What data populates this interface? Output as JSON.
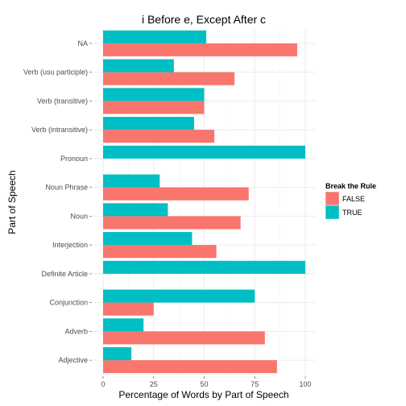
{
  "chart_data": {
    "type": "bar",
    "orientation": "horizontal",
    "title": "i Before e, Except After c",
    "xlabel": "Percentage of Words by Part of Speech",
    "ylabel": "Part of Speech",
    "xlim": [
      0,
      100
    ],
    "x_ticks": [
      0,
      25,
      50,
      75,
      100
    ],
    "grid": true,
    "legend": {
      "title": "Break the Rule",
      "position": "right"
    },
    "categories": [
      "NA",
      "Verb (usu participle)",
      "Verb (transitive)",
      "Verb (intransitive)",
      "Pronoun",
      "Noun Phrase",
      "Noun",
      "Interjection",
      "Definite Article",
      "Conjunction",
      "Adverb",
      "Adjective"
    ],
    "series": [
      {
        "name": "FALSE",
        "color": "#F8766D",
        "values": [
          96,
          65,
          50,
          55,
          null,
          72,
          68,
          56,
          null,
          25,
          80,
          86
        ]
      },
      {
        "name": "TRUE",
        "color": "#00BFC4",
        "values": [
          51,
          35,
          50,
          45,
          100,
          28,
          32,
          44,
          100,
          75,
          20,
          14
        ]
      }
    ]
  }
}
